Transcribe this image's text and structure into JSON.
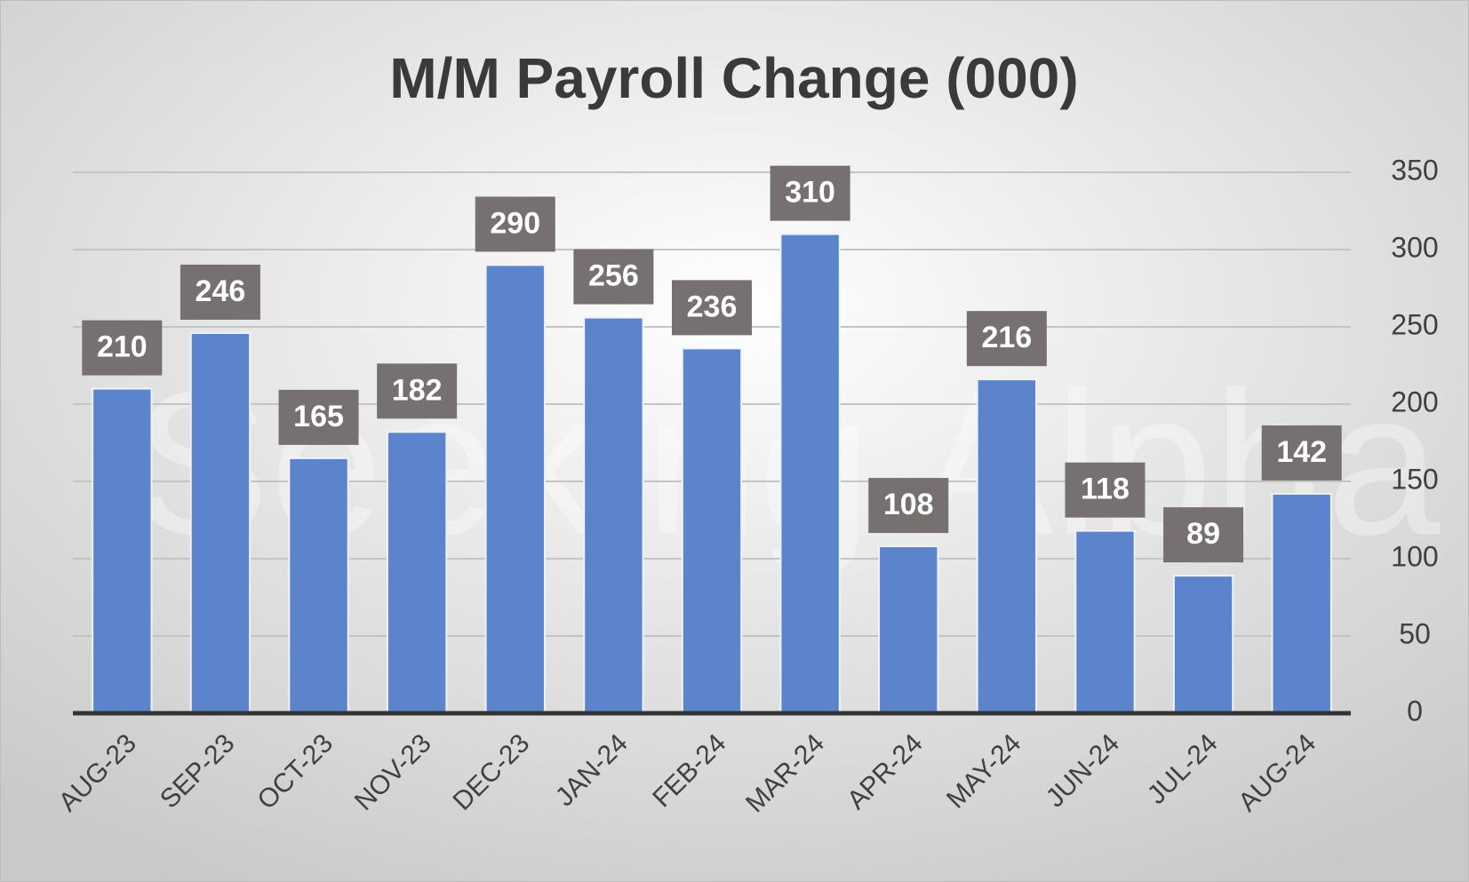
{
  "chart_data": {
    "type": "bar",
    "title": "M/M Payroll Change (000)",
    "watermark": "Seeking Alpha",
    "categories": [
      "AUG-23",
      "SEP-23",
      "OCT-23",
      "NOV-23",
      "DEC-23",
      "JAN-24",
      "FEB-24",
      "MAR-24",
      "APR-24",
      "MAY-24",
      "JUN-24",
      "JUL-24",
      "AUG-24"
    ],
    "values": [
      210,
      246,
      165,
      182,
      290,
      256,
      236,
      310,
      108,
      216,
      118,
      89,
      142
    ],
    "color": "#5b84cc",
    "label_box_color": "#767170",
    "ylim": [
      0,
      350
    ],
    "yticks": [
      0,
      50,
      100,
      150,
      200,
      250,
      300,
      350
    ],
    "grid": true,
    "y_axis_side": "right"
  }
}
